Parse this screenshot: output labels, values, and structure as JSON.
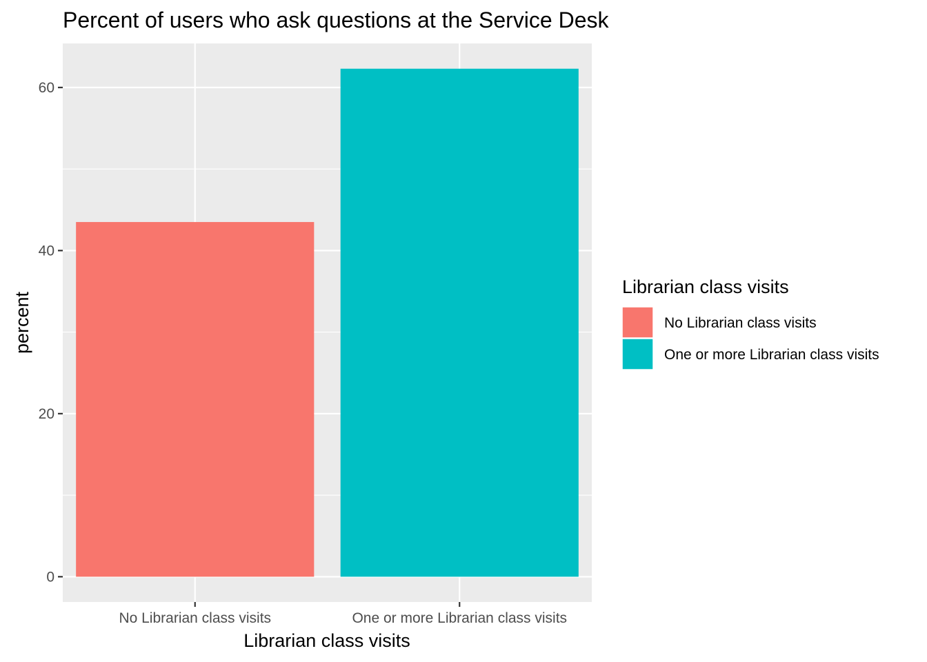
{
  "chart_data": {
    "type": "bar",
    "title": "Percent of users who ask questions at the Service Desk",
    "xlabel": "Librarian class visits",
    "ylabel": "percent",
    "categories": [
      "No Librarian class visits",
      "One or more Librarian class visits"
    ],
    "values": [
      43.5,
      62.3
    ],
    "colors": [
      "#F8766D",
      "#00BFC4"
    ],
    "ylim": [
      -3.1,
      65.4
    ],
    "yticks": [
      0,
      20,
      40,
      60
    ],
    "ytick_labels": [
      "0",
      "20",
      "40",
      "60"
    ],
    "grid": true,
    "panel_background": "#EBEBEB",
    "grid_color": "#FFFFFF",
    "legend": {
      "title": "Librarian class visits",
      "position": "right",
      "entries": [
        "No Librarian class visits",
        "One or more Librarian class visits"
      ]
    }
  }
}
